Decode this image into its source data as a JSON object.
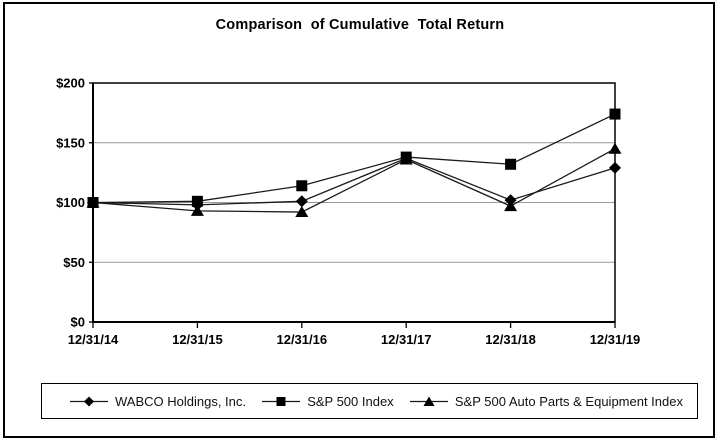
{
  "chart_data": {
    "type": "line",
    "title": "Comparison  of Cumulative  Total Return",
    "categories": [
      "12/31/14",
      "12/31/15",
      "12/31/16",
      "12/31/17",
      "12/31/18",
      "12/31/19"
    ],
    "series": [
      {
        "name": "WABCO Holdings, Inc.",
        "marker": "diamond",
        "values": [
          100,
          98,
          101,
          137,
          102,
          129
        ]
      },
      {
        "name": "S&P 500 Index",
        "marker": "square",
        "values": [
          100,
          101,
          114,
          138,
          132,
          174
        ]
      },
      {
        "name": "S&P 500 Auto Parts & Equipment Index",
        "marker": "triangle",
        "values": [
          100,
          93,
          92,
          136,
          97,
          145
        ]
      }
    ],
    "xlabel": "",
    "ylabel": "",
    "ylim": [
      0,
      200
    ],
    "yticks": [
      0,
      50,
      100,
      150,
      200
    ],
    "ytick_labels": [
      "$0",
      "$50",
      "$100",
      "$150",
      "$200"
    ],
    "grid": "horizontal gridlines at $50, $100, $150",
    "legend_position": "bottom",
    "draw_order": [
      2,
      0,
      1
    ],
    "colors": {
      "series_line": "#1a1a1a",
      "marker_fill": "#000000",
      "gridline": "#999999",
      "axis": "#000000",
      "background": "#ffffff"
    }
  }
}
